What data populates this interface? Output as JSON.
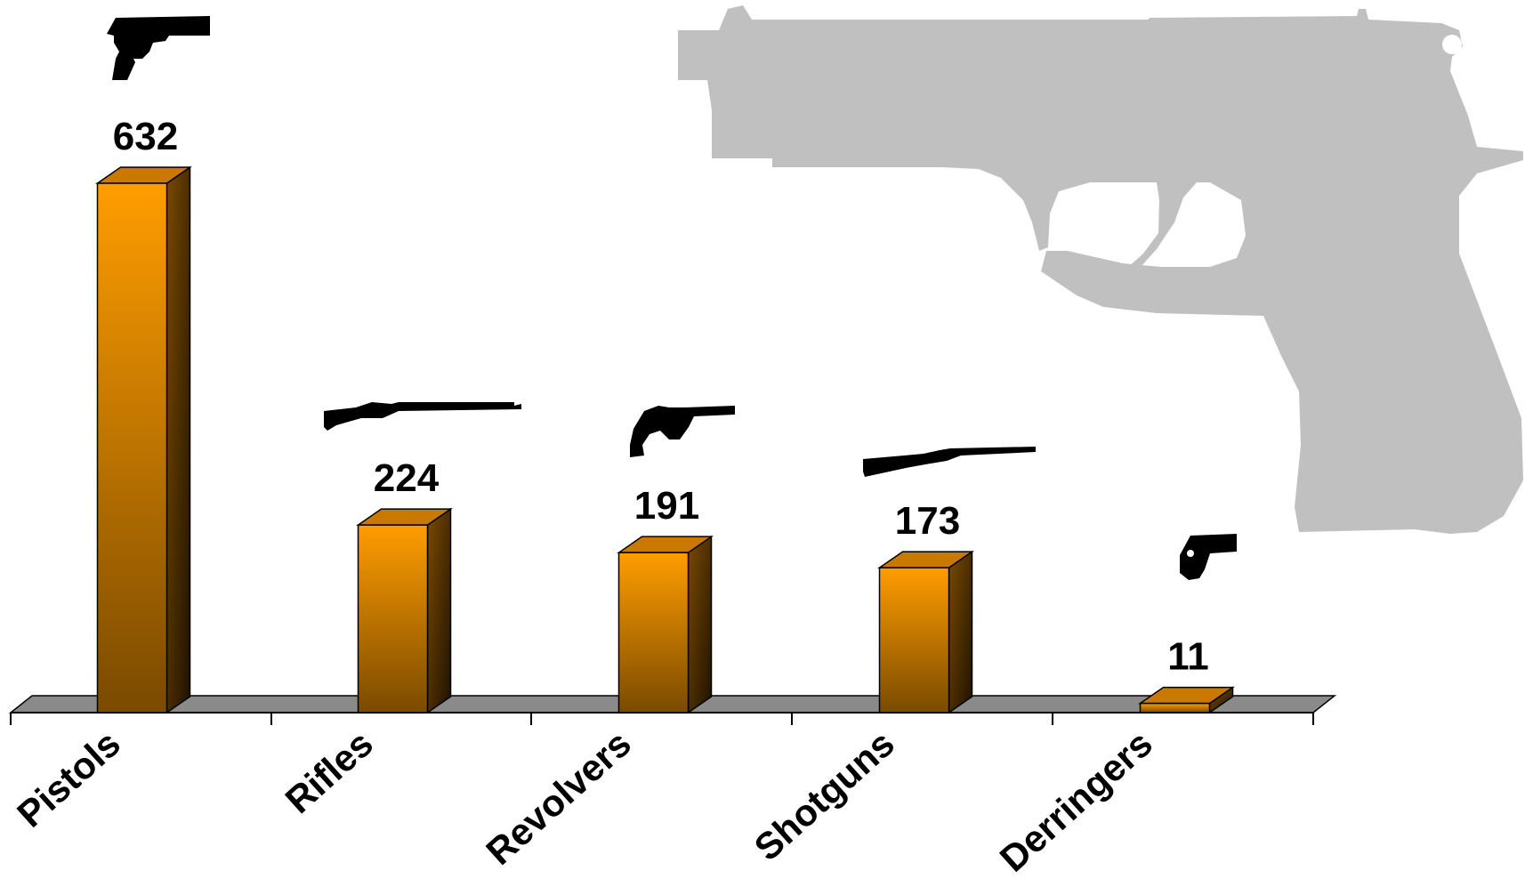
{
  "chart_data": {
    "type": "bar",
    "categories": [
      "Pistols",
      "Rifles",
      "Revolvers",
      "Shotguns",
      "Derringers"
    ],
    "values": [
      632,
      224,
      191,
      173,
      11
    ],
    "data_labels": [
      "632",
      "224",
      "191",
      "173",
      "11"
    ],
    "category_icons": [
      "pistol-icon",
      "rifle-icon",
      "revolver-icon",
      "shotgun-icon",
      "derringer-icon"
    ],
    "background_icon": "large-pistol-silhouette-icon",
    "colors": {
      "bar_light": "#ff9d00",
      "bar_dark": "#7a4a00",
      "bar_side": "#3a2300",
      "bar_top": "#c97800",
      "floor": "#8a8a8a",
      "silhouette": "#c0c0c0"
    },
    "ylim": [
      0,
      632
    ],
    "grid": false,
    "legend": "none",
    "title": "",
    "xlabel": "",
    "ylabel": ""
  }
}
